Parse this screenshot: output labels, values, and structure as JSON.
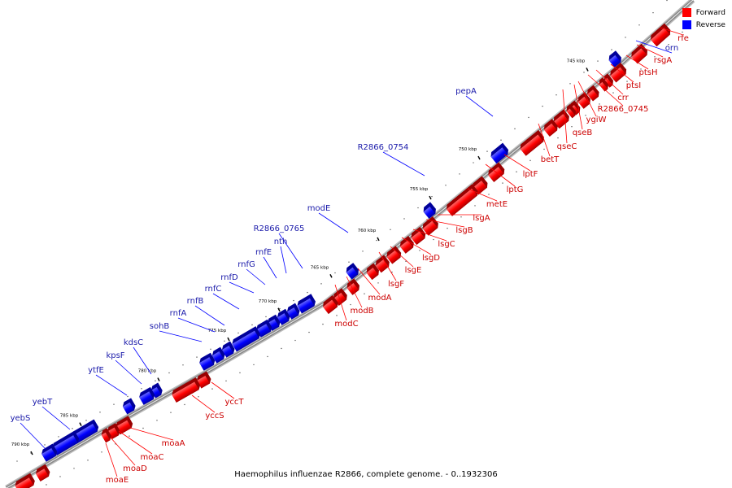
{
  "title": "Haemophilus influenzae R2866, complete genome. - 0..1932306",
  "legend": [
    {
      "label": "Forward",
      "color": "#ff0000"
    },
    {
      "label": "Reverse",
      "color": "#0000ff"
    }
  ],
  "colors": {
    "forward": "#ff0000",
    "reverse": "#0000ff",
    "backbone": "#888888",
    "label_forward": "#cc0000",
    "label_reverse": "#1a1aaa"
  },
  "ticks": [
    "745 kbp",
    "750 kbp",
    "755 kbp",
    "760 kbp",
    "765 kbp",
    "770 kbp",
    "775 kbp",
    "780 kbp",
    "785 kbp",
    "790 kbp"
  ],
  "forward_genes": [
    "rfe",
    "rsgA",
    "ptsH",
    "ptsI",
    "crr",
    "R2866_0745",
    "ygiW",
    "qseB",
    "qseC",
    "betT",
    "lptF",
    "lptG",
    "metE",
    "lsgA",
    "lsgB",
    "lsgC",
    "lsgD",
    "lsgE",
    "lsgF",
    "modA",
    "modB",
    "modC",
    "yccT",
    "yccS",
    "moaA",
    "moaC",
    "moaD",
    "moaE"
  ],
  "reverse_genes": [
    "orn",
    "pepA",
    "R2866_0754",
    "modE",
    "R2866_0765",
    "nth",
    "rnfE",
    "rnfG",
    "rnfD",
    "rnfC",
    "rnfB",
    "rnfA",
    "sohB",
    "kdsC",
    "kpsF",
    "ytfE",
    "yebT",
    "yebS"
  ]
}
